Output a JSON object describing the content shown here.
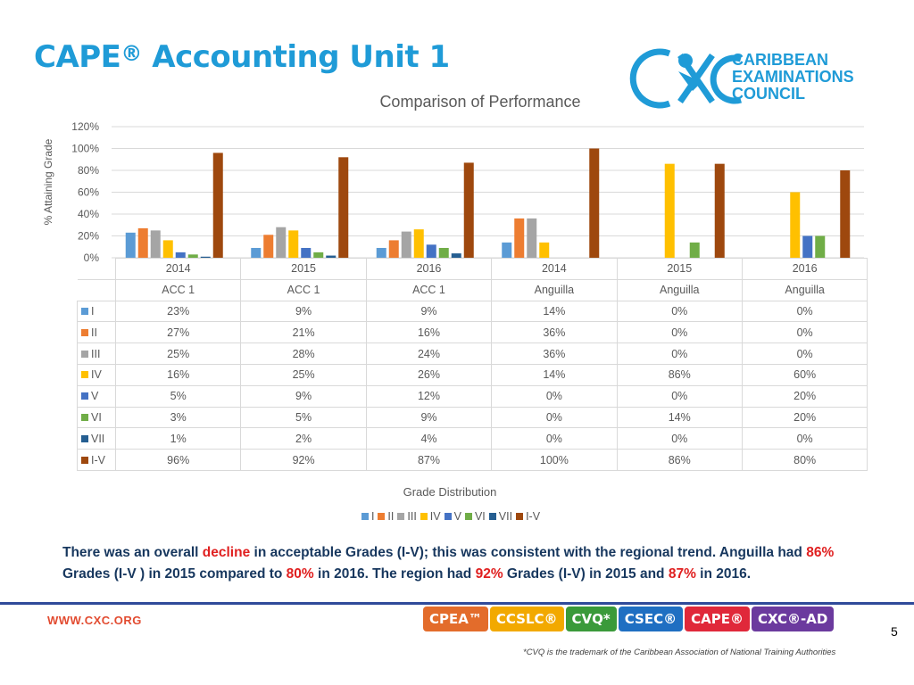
{
  "slide": {
    "title": "CAPE",
    "title_mark": "®",
    "title_rest": " Accounting Unit 1",
    "page_number": "5"
  },
  "logo": {
    "text_line1": "CARIBBEAN",
    "text_line2": "EXAMINATIONS",
    "text_line3": "COUNCIL",
    "icon": "cxc-logo-icon",
    "color": "#1f9bd7"
  },
  "chart_data": {
    "type": "bar",
    "title": "Comparison of Performance",
    "ylabel": "% Attaining Grade",
    "xlabel": "Grade Distribution",
    "ylim": [
      0,
      120
    ],
    "yticks": [
      "0%",
      "20%",
      "40%",
      "60%",
      "80%",
      "100%",
      "120%"
    ],
    "grid": true,
    "legend_position": "bottom",
    "categories": [
      {
        "year": "2014",
        "group": "ACC 1"
      },
      {
        "year": "2015",
        "group": "ACC 1"
      },
      {
        "year": "2016",
        "group": "ACC 1"
      },
      {
        "year": "2014",
        "group": "Anguilla"
      },
      {
        "year": "2015",
        "group": "Anguilla"
      },
      {
        "year": "2016",
        "group": "Anguilla"
      }
    ],
    "series": [
      {
        "name": "I",
        "color": "#5b9bd5",
        "values": [
          23,
          9,
          9,
          14,
          0,
          0
        ],
        "labels": [
          "23%",
          "9%",
          "9%",
          "14%",
          "0%",
          "0%"
        ]
      },
      {
        "name": "II",
        "color": "#ed7d31",
        "values": [
          27,
          21,
          16,
          36,
          0,
          0
        ],
        "labels": [
          "27%",
          "21%",
          "16%",
          "36%",
          "0%",
          "0%"
        ]
      },
      {
        "name": "III",
        "color": "#a5a5a5",
        "values": [
          25,
          28,
          24,
          36,
          0,
          0
        ],
        "labels": [
          "25%",
          "28%",
          "24%",
          "36%",
          "0%",
          "0%"
        ]
      },
      {
        "name": "IV",
        "color": "#ffc000",
        "values": [
          16,
          25,
          26,
          14,
          86,
          60
        ],
        "labels": [
          "16%",
          "25%",
          "26%",
          "14%",
          "86%",
          "60%"
        ]
      },
      {
        "name": "V",
        "color": "#4472c4",
        "values": [
          5,
          9,
          12,
          0,
          0,
          20
        ],
        "labels": [
          "5%",
          "9%",
          "12%",
          "0%",
          "0%",
          "20%"
        ]
      },
      {
        "name": "VI",
        "color": "#70ad47",
        "values": [
          3,
          5,
          9,
          0,
          14,
          20
        ],
        "labels": [
          "3%",
          "5%",
          "9%",
          "0%",
          "14%",
          "20%"
        ]
      },
      {
        "name": "VII",
        "color": "#255e91",
        "values": [
          1,
          2,
          4,
          0,
          0,
          0
        ],
        "labels": [
          "1%",
          "2%",
          "4%",
          "0%",
          "0%",
          "0%"
        ]
      },
      {
        "name": "I-V",
        "color": "#9e480e",
        "values": [
          96,
          92,
          87,
          100,
          86,
          80
        ],
        "labels": [
          "96%",
          "92%",
          "87%",
          "100%",
          "86%",
          "80%"
        ]
      }
    ]
  },
  "summary": {
    "p1": "There was an overall ",
    "h1": "decline",
    "p2": " in acceptable Grades (I-V); this was consistent with the regional trend. Anguilla had ",
    "h2": "86%",
    "p3": " Grades (I-V ) in 2015 compared to ",
    "h3": "80%",
    "p4": " in 2016. The region had ",
    "h4": "92%",
    "p5": " Grades (I-V) in 2015 and ",
    "h5": "87%",
    "p6": " in 2016."
  },
  "footer": {
    "url": "WWW.CXC.ORG",
    "brands": [
      {
        "label": "CPEA™",
        "color": "#e36c2b"
      },
      {
        "label": "CCSLC®",
        "color": "#f2a900"
      },
      {
        "label": "CVQ*",
        "color": "#3a9a3a"
      },
      {
        "label": "CSEC®",
        "color": "#1f6fc2"
      },
      {
        "label": "CAPE®",
        "color": "#e0283a"
      },
      {
        "label": "CXC®-AD",
        "color": "#6b3a9e"
      }
    ],
    "trademark_note": "*CVQ is the trademark of the Caribbean Association of National Training Authorities"
  }
}
